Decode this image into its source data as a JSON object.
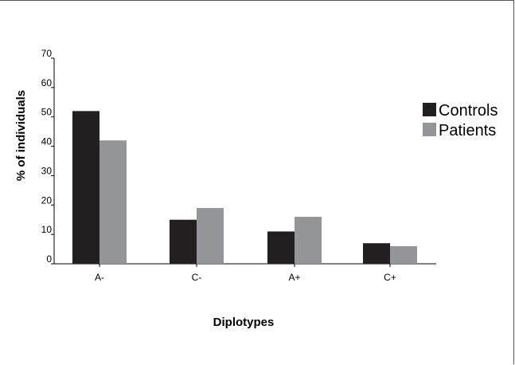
{
  "chart_data": {
    "type": "bar",
    "categories": [
      "A-",
      "C-",
      "A+",
      "C+"
    ],
    "series": [
      {
        "name": "Controls",
        "values": [
          52,
          15,
          11,
          7
        ],
        "color": "#231f20"
      },
      {
        "name": "Patients",
        "values": [
          42,
          19,
          16,
          6
        ],
        "color": "#939598"
      }
    ],
    "title": "",
    "xlabel": "Diplotypes",
    "ylabel": "% of individuals",
    "ylim": [
      0,
      70
    ],
    "yticks": [
      "0",
      "10",
      "20",
      "30",
      "40",
      "50",
      "60",
      "70"
    ],
    "grid": false,
    "legend_position": "right"
  }
}
